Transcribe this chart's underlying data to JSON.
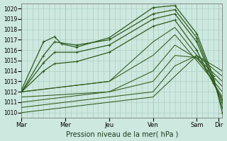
{
  "xlabel": "Pression niveau de la mer( hPa )",
  "bg_color": "#cde8df",
  "grid_color": "#a8ccbe",
  "line_color": "#2d5a1b",
  "ylim": [
    1009.5,
    1020.5
  ],
  "yticks": [
    1010,
    1011,
    1012,
    1013,
    1014,
    1015,
    1016,
    1017,
    1018,
    1019,
    1020
  ],
  "day_labels": [
    "Mar",
    "Mer",
    "Jeu",
    "Ven",
    "Sam",
    "Dir"
  ],
  "day_positions": [
    0,
    48,
    96,
    144,
    192,
    216
  ],
  "num_hours": 220,
  "series": [
    {
      "points": [
        [
          0,
          1012.2
        ],
        [
          24,
          1016.8
        ],
        [
          36,
          1017.3
        ],
        [
          44,
          1016.6
        ],
        [
          60,
          1016.3
        ],
        [
          96,
          1017.2
        ],
        [
          144,
          1020.1
        ],
        [
          168,
          1020.3
        ],
        [
          192,
          1017.6
        ],
        [
          210,
          1013.5
        ],
        [
          220,
          1010.0
        ]
      ],
      "marker": true,
      "lw": 0.9
    },
    {
      "points": [
        [
          0,
          1012.0
        ],
        [
          24,
          1015.5
        ],
        [
          36,
          1016.8
        ],
        [
          60,
          1016.5
        ],
        [
          96,
          1017.0
        ],
        [
          144,
          1019.5
        ],
        [
          168,
          1019.9
        ],
        [
          192,
          1017.2
        ],
        [
          210,
          1013.2
        ],
        [
          220,
          1010.5
        ]
      ],
      "marker": true,
      "lw": 0.9
    },
    {
      "points": [
        [
          0,
          1012.0
        ],
        [
          24,
          1014.8
        ],
        [
          36,
          1015.8
        ],
        [
          60,
          1015.8
        ],
        [
          96,
          1016.5
        ],
        [
          144,
          1019.0
        ],
        [
          168,
          1019.5
        ],
        [
          192,
          1016.8
        ],
        [
          210,
          1013.0
        ],
        [
          220,
          1011.0
        ]
      ],
      "marker": true,
      "lw": 0.9
    },
    {
      "points": [
        [
          0,
          1012.0
        ],
        [
          24,
          1014.0
        ],
        [
          36,
          1014.7
        ],
        [
          60,
          1014.9
        ],
        [
          96,
          1015.8
        ],
        [
          144,
          1018.3
        ],
        [
          168,
          1018.9
        ],
        [
          192,
          1016.0
        ],
        [
          210,
          1012.8
        ],
        [
          220,
          1011.3
        ]
      ],
      "marker": true,
      "lw": 0.9
    },
    {
      "points": [
        [
          0,
          1012.0
        ],
        [
          96,
          1013.0
        ],
        [
          144,
          1016.8
        ],
        [
          168,
          1018.2
        ],
        [
          192,
          1015.5
        ],
        [
          220,
          1011.5
        ]
      ],
      "marker": false,
      "lw": 0.75
    },
    {
      "points": [
        [
          0,
          1012.0
        ],
        [
          96,
          1013.0
        ],
        [
          144,
          1015.5
        ],
        [
          168,
          1017.5
        ],
        [
          192,
          1015.0
        ],
        [
          220,
          1012.0
        ]
      ],
      "marker": false,
      "lw": 0.75
    },
    {
      "points": [
        [
          0,
          1011.5
        ],
        [
          96,
          1012.0
        ],
        [
          144,
          1014.0
        ],
        [
          168,
          1016.5
        ],
        [
          192,
          1015.2
        ],
        [
          220,
          1012.5
        ]
      ],
      "marker": false,
      "lw": 0.75
    },
    {
      "points": [
        [
          0,
          1011.0
        ],
        [
          96,
          1012.0
        ],
        [
          144,
          1013.0
        ],
        [
          168,
          1015.5
        ],
        [
          192,
          1015.3
        ],
        [
          220,
          1013.0
        ]
      ],
      "marker": false,
      "lw": 0.75
    },
    {
      "points": [
        [
          0,
          1010.5
        ],
        [
          96,
          1011.5
        ],
        [
          144,
          1012.0
        ],
        [
          168,
          1014.5
        ],
        [
          192,
          1015.5
        ],
        [
          220,
          1013.5
        ]
      ],
      "marker": false,
      "lw": 0.75
    },
    {
      "points": [
        [
          0,
          1010.0
        ],
        [
          96,
          1011.0
        ],
        [
          144,
          1011.5
        ],
        [
          168,
          1013.5
        ],
        [
          192,
          1015.5
        ],
        [
          220,
          1014.0
        ]
      ],
      "marker": false,
      "lw": 0.75
    }
  ]
}
